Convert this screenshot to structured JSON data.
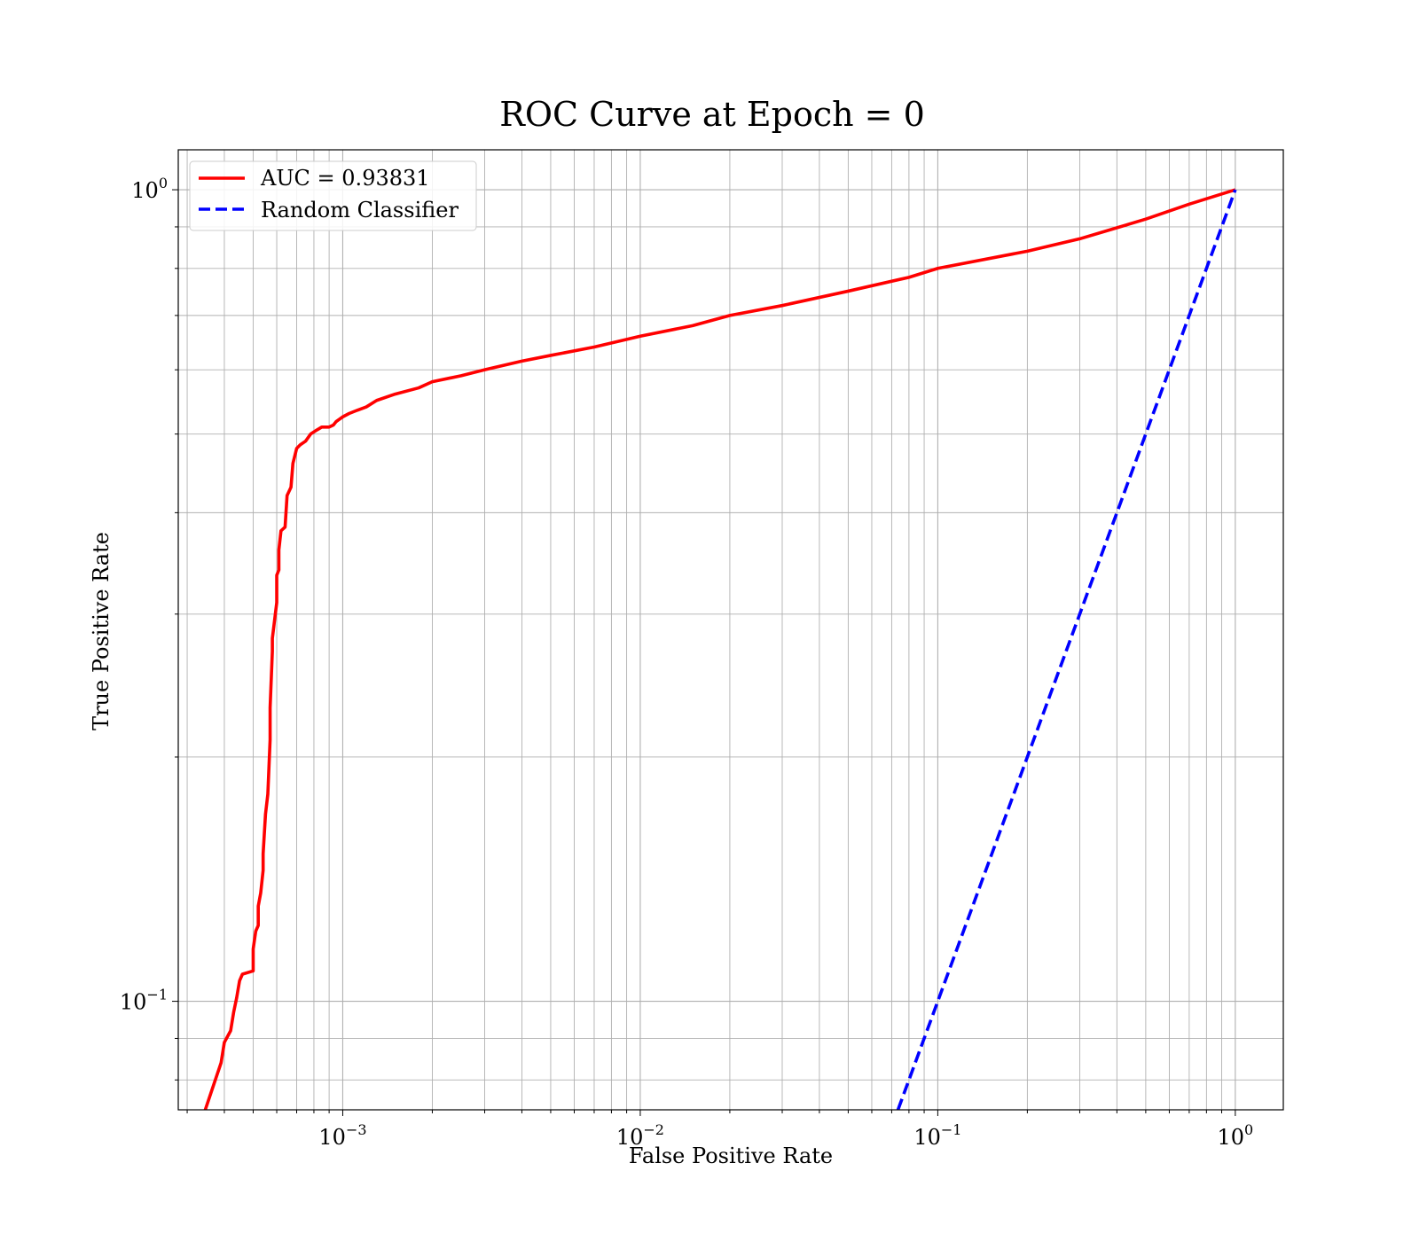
{
  "chart_data": {
    "type": "line",
    "title": "ROC Curve at Epoch = 0",
    "xlabel": "False Positive Rate",
    "ylabel": "True Positive Rate",
    "xscale": "log",
    "yscale": "log",
    "xlim": [
      0.00028,
      1.45
    ],
    "ylim": [
      0.0735,
      1.12
    ],
    "grid": true,
    "grid_minor": true,
    "legend_position": "top-left",
    "x_ticks": [
      {
        "value": 0.001,
        "base": "10",
        "exp": "−3"
      },
      {
        "value": 0.01,
        "base": "10",
        "exp": "−2"
      },
      {
        "value": 0.1,
        "base": "10",
        "exp": "−1"
      },
      {
        "value": 1,
        "base": "10",
        "exp": "0"
      }
    ],
    "y_ticks": [
      {
        "value": 0.1,
        "base": "10",
        "exp": "−1"
      },
      {
        "value": 1,
        "base": "10",
        "exp": "0"
      }
    ],
    "series": [
      {
        "name": "AUC = 0.93831",
        "color": "#ff0000",
        "style": "solid",
        "x": [
          0.00033,
          0.00039,
          0.0004,
          0.00042,
          0.00043,
          0.00044,
          0.00045,
          0.00046,
          0.0005,
          0.0005,
          0.00051,
          0.00052,
          0.00052,
          0.00053,
          0.00054,
          0.00054,
          0.00055,
          0.00056,
          0.00057,
          0.00057,
          0.00058,
          0.00058,
          0.0006,
          0.0006,
          0.00061,
          0.00061,
          0.00062,
          0.00064,
          0.00065,
          0.00067,
          0.00068,
          0.00069,
          0.0007,
          0.00072,
          0.00075,
          0.00078,
          0.00082,
          0.00085,
          0.0009,
          0.00093,
          0.00095,
          0.001,
          0.00105,
          0.00112,
          0.0012,
          0.0013,
          0.0015,
          0.0018,
          0.002,
          0.0025,
          0.003,
          0.004,
          0.005,
          0.007,
          0.01,
          0.015,
          0.02,
          0.03,
          0.05,
          0.08,
          0.1,
          0.2,
          0.3,
          0.5,
          0.7,
          1.0
        ],
        "y": [
          0.07,
          0.084,
          0.089,
          0.092,
          0.097,
          0.101,
          0.106,
          0.108,
          0.109,
          0.116,
          0.122,
          0.124,
          0.131,
          0.136,
          0.145,
          0.152,
          0.17,
          0.18,
          0.21,
          0.23,
          0.27,
          0.28,
          0.31,
          0.335,
          0.34,
          0.36,
          0.38,
          0.384,
          0.42,
          0.43,
          0.46,
          0.47,
          0.48,
          0.485,
          0.49,
          0.5,
          0.506,
          0.51,
          0.51,
          0.513,
          0.518,
          0.525,
          0.53,
          0.535,
          0.54,
          0.55,
          0.56,
          0.57,
          0.58,
          0.59,
          0.6,
          0.615,
          0.625,
          0.64,
          0.66,
          0.68,
          0.7,
          0.72,
          0.75,
          0.78,
          0.8,
          0.84,
          0.87,
          0.92,
          0.96,
          1.0
        ]
      },
      {
        "name": "Random Classifier",
        "color": "#0000ff",
        "style": "dashed",
        "x": [
          0.0735,
          1.0
        ],
        "y": [
          0.0735,
          1.0
        ]
      }
    ]
  }
}
